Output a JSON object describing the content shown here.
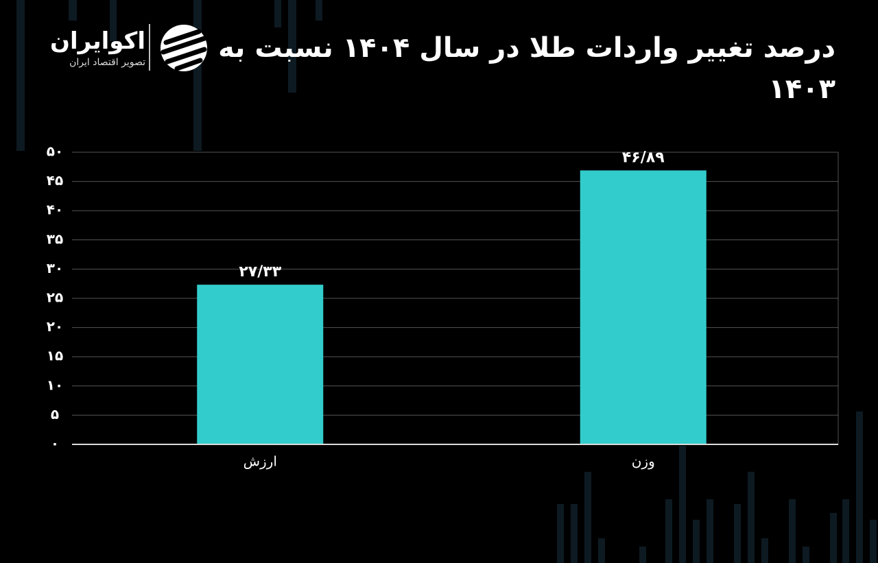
{
  "brand": {
    "name": "اکوایران",
    "tagline": "تصویر اقتصاد ایران"
  },
  "chart_data": {
    "type": "bar",
    "title": "درصد تغییر واردات طلا در سال ۱۴۰۴ نسبت به ۱۴۰۳",
    "categories": [
      "ارزش",
      "وزن"
    ],
    "values": [
      27.33,
      46.89
    ],
    "value_labels": [
      "۲۷/۳۳",
      "۴۶/۸۹"
    ],
    "color": "#33cccc",
    "ylim": [
      0,
      50
    ],
    "yticks": [
      {
        "value": 0,
        "label": "۰"
      },
      {
        "value": 5,
        "label": "۵"
      },
      {
        "value": 10,
        "label": "۱۰"
      },
      {
        "value": 15,
        "label": "۱۵"
      },
      {
        "value": 20,
        "label": "۲۰"
      },
      {
        "value": 25,
        "label": "۲۵"
      },
      {
        "value": 30,
        "label": "۳۰"
      },
      {
        "value": 35,
        "label": "۳۵"
      },
      {
        "value": 40,
        "label": "۴۰"
      },
      {
        "value": 45,
        "label": "۴۵"
      },
      {
        "value": 50,
        "label": "۵۰"
      }
    ],
    "grid": true
  }
}
